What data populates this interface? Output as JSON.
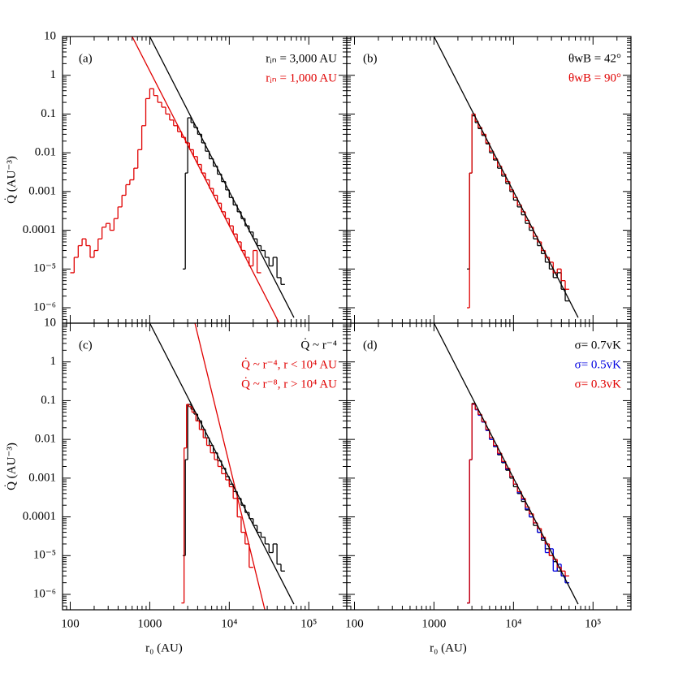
{
  "chart_data": [
    {
      "type": "histogram",
      "panel_label": "(a)",
      "ylabel": "Q̇ (AU⁻³)",
      "log_x": true,
      "log_y": true,
      "xlim": [
        80,
        300000
      ],
      "ylim": [
        4e-07,
        10
      ],
      "xticks": [
        100,
        1000,
        10000,
        100000
      ],
      "yticks": [
        10,
        1,
        0.1,
        0.01,
        0.001,
        0.0001,
        {
          "value": 1e-05,
          "label": "10⁻⁵"
        },
        {
          "value": 1e-06,
          "label": "10⁻⁶"
        }
      ],
      "series": [
        {
          "name": "rᵢₙ = 3,000 AU",
          "color": "#000000",
          "bins": [
            2600,
            2800,
            3000,
            3300,
            3600,
            4000,
            4500,
            5000,
            5600,
            6300,
            7100,
            8000,
            9000,
            10000,
            11200,
            12600,
            14100,
            15800,
            17800,
            20000,
            22400,
            25100,
            28200,
            31600,
            35500,
            39800,
            44700,
            50100
          ],
          "values": [
            1e-05,
            0.003,
            0.08,
            0.06,
            0.045,
            0.03,
            0.018,
            0.011,
            0.007,
            0.0045,
            0.0028,
            0.0018,
            0.0011,
            0.0007,
            0.00045,
            0.0003,
            0.0002,
            0.00013,
            9e-05,
            6e-05,
            4e-05,
            3e-05,
            2e-05,
            1.2e-05,
            2e-05,
            6e-06,
            4e-06
          ]
        },
        {
          "name": "rᵢₙ = 1,000 AU",
          "color": "#e00000",
          "bins": [
            100,
            112,
            126,
            141,
            158,
            178,
            200,
            224,
            251,
            282,
            316,
            355,
            398,
            447,
            501,
            562,
            631,
            708,
            794,
            891,
            1000,
            1122,
            1259,
            1413,
            1585,
            1778,
            1995,
            2239,
            2512,
            2818,
            3162,
            3548,
            3981,
            4467,
            5012,
            5623,
            6310,
            7079,
            7943,
            8913,
            10000,
            11220,
            12589,
            14125,
            15849,
            17783,
            19953,
            22387,
            25119
          ],
          "values": [
            8e-06,
            2e-05,
            4e-05,
            6e-05,
            4e-05,
            2e-05,
            3e-05,
            6e-05,
            0.00012,
            0.00015,
            0.0001,
            0.0002,
            0.0004,
            0.0008,
            0.0015,
            0.002,
            0.004,
            0.012,
            0.05,
            0.25,
            0.45,
            0.3,
            0.2,
            0.15,
            0.1,
            0.07,
            0.05,
            0.035,
            0.025,
            0.018,
            0.012,
            0.008,
            0.005,
            0.003,
            0.002,
            0.0012,
            0.0008,
            0.0005,
            0.0003,
            0.0002,
            0.00013,
            8e-05,
            5e-05,
            3e-05,
            2e-05,
            1.2e-05,
            3e-05,
            8e-06
          ]
        },
        {
          "color": "#000000",
          "x": [
            1000,
            65000
          ],
          "values": [
            10,
            5.6e-07
          ]
        },
        {
          "color": "#e00000",
          "x": [
            600,
            42000
          ],
          "values": [
            10,
            4.2e-07
          ]
        }
      ]
    },
    {
      "type": "histogram",
      "panel_label": "(b)",
      "log_x": true,
      "log_y": true,
      "xlim": [
        80,
        300000
      ],
      "ylim": [
        4e-07,
        10
      ],
      "xticks": [
        100,
        1000,
        10000,
        100000
      ],
      "yticks": [
        10,
        1,
        0.1,
        0.01,
        0.001,
        0.0001,
        1e-05,
        1e-06
      ],
      "series": [
        {
          "name": "θwB = 42°",
          "color": "#000000",
          "bins": [
            2600,
            2800,
            3000,
            3300,
            3600,
            4000,
            4500,
            5000,
            5600,
            6300,
            7100,
            8000,
            9000,
            10000,
            11200,
            12600,
            14100,
            15800,
            17800,
            20000,
            22400,
            25100,
            28200,
            31600,
            35500,
            39800,
            44700,
            50100
          ],
          "values": [
            1e-05,
            0.003,
            0.09,
            0.06,
            0.042,
            0.028,
            0.017,
            0.01,
            0.0065,
            0.004,
            0.0025,
            0.0016,
            0.001,
            0.0006,
            0.0004,
            0.00025,
            0.00015,
            0.0001,
            6e-05,
            4e-05,
            2.5e-05,
            1.5e-05,
            1e-05,
            6e-06,
            8e-06,
            3e-06,
            1.5e-06
          ]
        },
        {
          "name": "θwB = 90°",
          "color": "#e00000",
          "bins": [
            2600,
            2800,
            3000,
            3300,
            3600,
            4000,
            4500,
            5000,
            5600,
            6300,
            7100,
            8000,
            9000,
            10000,
            11200,
            12600,
            14100,
            15800,
            17800,
            20000,
            22400,
            25100,
            28200,
            31600,
            35500,
            39800,
            44700,
            50100
          ],
          "values": [
            1e-06,
            0.003,
            0.1,
            0.065,
            0.045,
            0.03,
            0.018,
            0.011,
            0.007,
            0.0045,
            0.0028,
            0.0018,
            0.0011,
            0.0007,
            0.00045,
            0.0003,
            0.00018,
            0.00012,
            7e-05,
            5e-05,
            3e-05,
            2e-05,
            1.5e-05,
            8e-06,
            1e-05,
            5e-06,
            3e-06
          ]
        },
        {
          "color": "#000000",
          "x": [
            1000,
            65000
          ],
          "values": [
            10,
            5.6e-07
          ]
        }
      ]
    },
    {
      "type": "histogram",
      "panel_label": "(c)",
      "ylabel": "Q̇ (AU⁻³)",
      "xlabel": "r₀ (AU)",
      "log_x": true,
      "log_y": true,
      "xlim": [
        80,
        300000
      ],
      "ylim": [
        4e-07,
        10
      ],
      "xticks": [
        100,
        1000,
        {
          "value": 10000,
          "label": "10⁴"
        },
        {
          "value": 100000,
          "label": "10⁵"
        }
      ],
      "yticks": [
        10,
        1,
        0.1,
        0.01,
        0.001,
        0.0001,
        {
          "value": 1e-05,
          "label": "10⁻⁵"
        },
        {
          "value": 1e-06,
          "label": "10⁻⁶"
        }
      ],
      "series": [
        {
          "name": "Q̇ ~ r⁻⁴",
          "color": "#000000",
          "bins": [
            2600,
            2800,
            3000,
            3300,
            3600,
            4000,
            4500,
            5000,
            5600,
            6300,
            7100,
            8000,
            9000,
            10000,
            11200,
            12600,
            14100,
            15800,
            17800,
            20000,
            22400,
            25100,
            28200,
            31600,
            35500,
            39800,
            44700,
            50100
          ],
          "values": [
            1e-05,
            0.003,
            0.08,
            0.06,
            0.045,
            0.03,
            0.018,
            0.011,
            0.007,
            0.0045,
            0.0028,
            0.0018,
            0.0011,
            0.0007,
            0.00045,
            0.0003,
            0.0002,
            0.00013,
            9e-05,
            6e-05,
            4e-05,
            3e-05,
            2e-05,
            1.2e-05,
            2e-05,
            6e-06,
            4e-06
          ]
        },
        {
          "name": "Q̇ ~ r⁻⁴, r < 10⁴ AU",
          "color": "#e00000",
          "bins": [
            2500,
            2700,
            2900,
            3100,
            3400,
            3800,
            4200,
            4700,
            5200,
            5800,
            6500,
            7200,
            8000,
            9000,
            10000,
            11200,
            12600,
            14100,
            15800,
            17800,
            20000
          ],
          "values": [
            6e-07,
            0.006,
            0.08,
            0.07,
            0.05,
            0.03,
            0.018,
            0.011,
            0.007,
            0.0045,
            0.003,
            0.002,
            0.0013,
            0.0009,
            0.0006,
            0.0003,
            0.0001,
            4e-05,
            2e-05,
            5e-06
          ]
        },
        {
          "name": "Q̇ ~ r⁻⁸, r > 10⁴ AU",
          "color": "#e00000",
          "x": [
            3700,
            28000
          ],
          "values": [
            10,
            4e-07
          ]
        },
        {
          "color": "#000000",
          "x": [
            1000,
            65000
          ],
          "values": [
            10,
            5.6e-07
          ]
        }
      ]
    },
    {
      "type": "histogram",
      "panel_label": "(d)",
      "xlabel": "r₀ (AU)",
      "log_x": true,
      "log_y": true,
      "xlim": [
        80,
        300000
      ],
      "ylim": [
        4e-07,
        10
      ],
      "xticks": [
        100,
        1000,
        {
          "value": 10000,
          "label": "10⁴"
        },
        {
          "value": 100000,
          "label": "10⁵"
        }
      ],
      "yticks": [
        10,
        1,
        0.1,
        0.01,
        0.001,
        0.0001,
        1e-05,
        1e-06
      ],
      "series": [
        {
          "name": "σ= 0.7vK",
          "color": "#000000",
          "bins": [
            2600,
            2800,
            3000,
            3300,
            3600,
            4000,
            4500,
            5000,
            5600,
            6300,
            7100,
            8000,
            9000,
            10000,
            11200,
            12600,
            14100,
            15800,
            17800,
            20000,
            22400,
            25100,
            28200,
            31600,
            35500,
            39800,
            44700,
            50100
          ],
          "values": [
            6e-07,
            0.003,
            0.085,
            0.06,
            0.043,
            0.028,
            0.017,
            0.01,
            0.0065,
            0.004,
            0.0025,
            0.0016,
            0.001,
            0.0006,
            0.0004,
            0.00025,
            0.00015,
            0.0001,
            6e-05,
            4e-05,
            2.5e-05,
            1.5e-05,
            1e-05,
            7e-06,
            4e-06,
            3e-06,
            2e-06
          ]
        },
        {
          "name": "σ= 0.5vK",
          "color": "#0000e0",
          "bins": [
            2600,
            2800,
            3000,
            3300,
            3600,
            4000,
            4500,
            5000,
            5600,
            6300,
            7100,
            8000,
            9000,
            10000,
            11200,
            12600,
            14100,
            15800,
            17800,
            20000,
            22400,
            25100,
            28200,
            31600,
            35500,
            39800,
            44700,
            50100
          ],
          "values": [
            6e-07,
            0.003,
            0.08,
            0.058,
            0.042,
            0.028,
            0.017,
            0.01,
            0.0066,
            0.0042,
            0.0026,
            0.0017,
            0.0011,
            0.0007,
            0.00042,
            0.00028,
            0.00016,
            0.0001,
            7e-05,
            4e-05,
            2.8e-05,
            1.2e-05,
            1.5e-05,
            4e-06,
            6e-06,
            3e-06,
            2e-06
          ]
        },
        {
          "name": "σ= 0.3vK",
          "color": "#e00000",
          "bins": [
            2600,
            2800,
            3000,
            3300,
            3600,
            4000,
            4500,
            5000,
            5600,
            6300,
            7100,
            8000,
            9000,
            10000,
            11200,
            12600,
            14100,
            15800,
            17800,
            20000,
            22400,
            25100,
            28200,
            31600,
            35500,
            39800,
            44700,
            50100
          ],
          "values": [
            6e-07,
            0.003,
            0.082,
            0.06,
            0.044,
            0.029,
            0.018,
            0.011,
            0.007,
            0.0044,
            0.0027,
            0.0018,
            0.0011,
            0.0007,
            0.00045,
            0.0003,
            0.00018,
            0.00012,
            7e-05,
            5e-05,
            3e-05,
            2e-05,
            1e-05,
            8e-06,
            5e-06,
            4e-06,
            3e-06
          ]
        },
        {
          "color": "#000000",
          "x": [
            1000,
            65000
          ],
          "values": [
            10,
            5.6e-07
          ]
        }
      ]
    }
  ]
}
